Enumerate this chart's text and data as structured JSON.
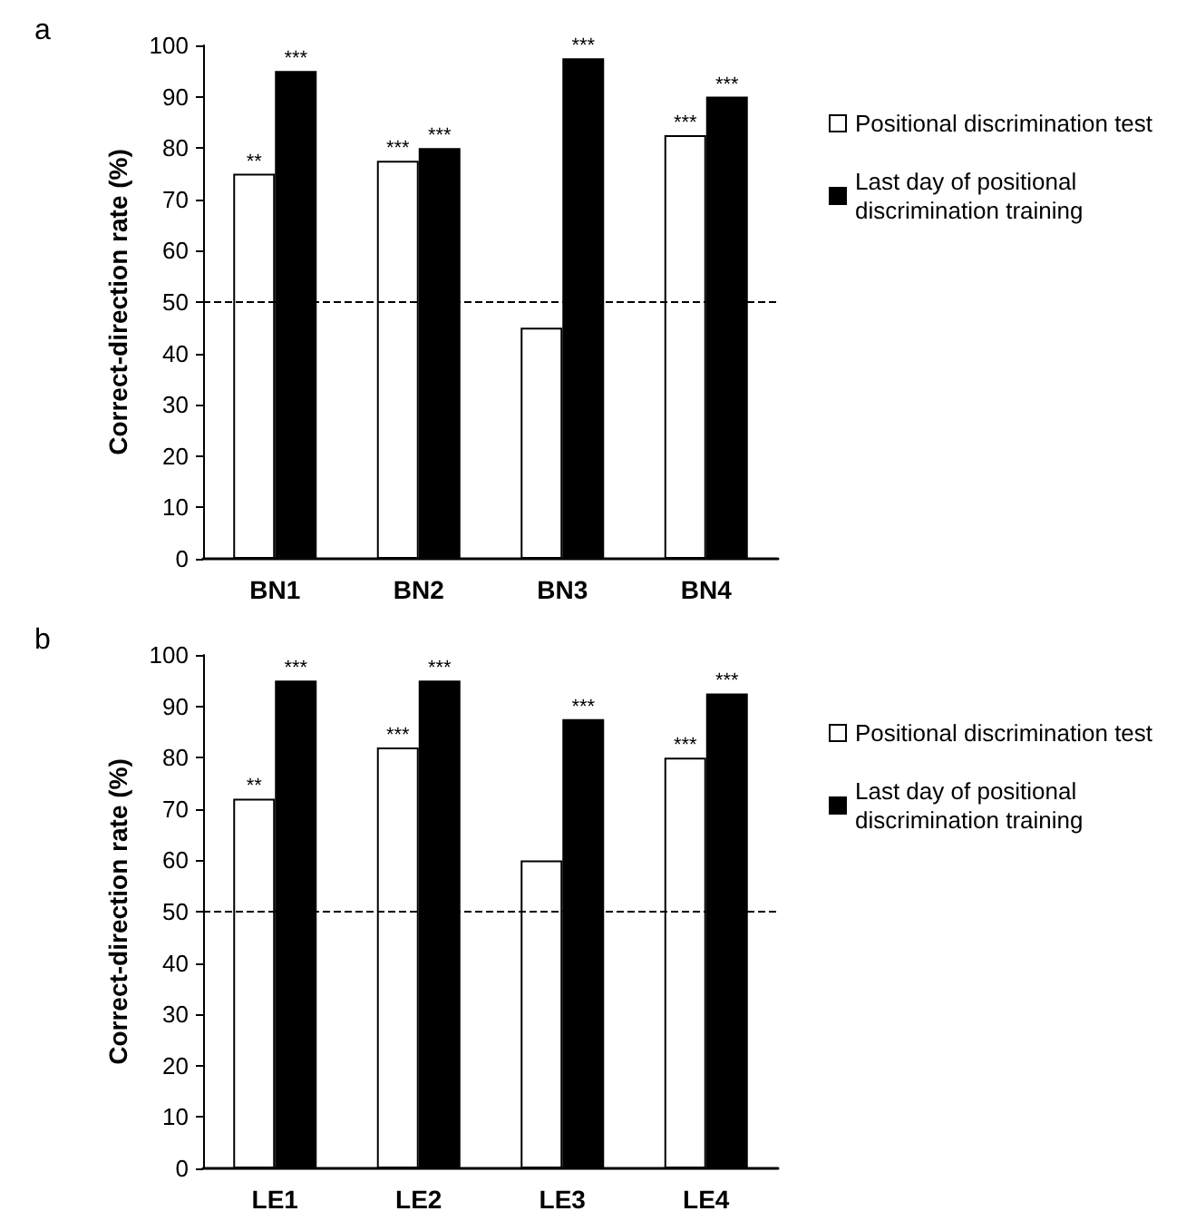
{
  "chart_data": [
    {
      "type": "bar",
      "title": "a",
      "ylabel": "Correct-direction rate (%)",
      "categories": [
        "BN1",
        "BN2",
        "BN3",
        "BN4"
      ],
      "series": [
        {
          "name": "Positional discrimination test",
          "color": "#ffffff",
          "values": [
            75,
            77.5,
            45,
            82.5
          ],
          "value_labels": [
            "**",
            "***",
            null,
            "***"
          ]
        },
        {
          "name": "Last day of positional discrimination training",
          "color": "#000000",
          "values": [
            95,
            80,
            97.5,
            90
          ],
          "value_labels": [
            "***",
            "***",
            "***",
            "***"
          ]
        }
      ],
      "ylim": [
        0,
        100
      ],
      "yticks": [
        0,
        10,
        20,
        30,
        40,
        50,
        60,
        70,
        80,
        90,
        100
      ],
      "grid": false,
      "legend": "right",
      "ref_lines": [
        {
          "axis": "y",
          "value": 50,
          "color": "#000000",
          "line_style": "dashed"
        }
      ]
    },
    {
      "type": "bar",
      "title": "b",
      "ylabel": "Correct-direction rate (%)",
      "categories": [
        "LE1",
        "LE2",
        "LE3",
        "LE4"
      ],
      "series": [
        {
          "name": "Positional discrimination test",
          "color": "#ffffff",
          "values": [
            72,
            82,
            60,
            80
          ],
          "value_labels": [
            "**",
            "***",
            null,
            "***"
          ]
        },
        {
          "name": "Last day of positional discrimination training",
          "color": "#000000",
          "values": [
            95,
            95,
            87.5,
            92.5
          ],
          "value_labels": [
            "***",
            "***",
            "***",
            "***"
          ]
        }
      ],
      "ylim": [
        0,
        100
      ],
      "yticks": [
        0,
        10,
        20,
        30,
        40,
        50,
        60,
        70,
        80,
        90,
        100
      ],
      "grid": false,
      "legend": "right",
      "ref_lines": [
        {
          "axis": "y",
          "value": 50,
          "color": "#000000",
          "line_style": "dashed"
        }
      ]
    }
  ]
}
